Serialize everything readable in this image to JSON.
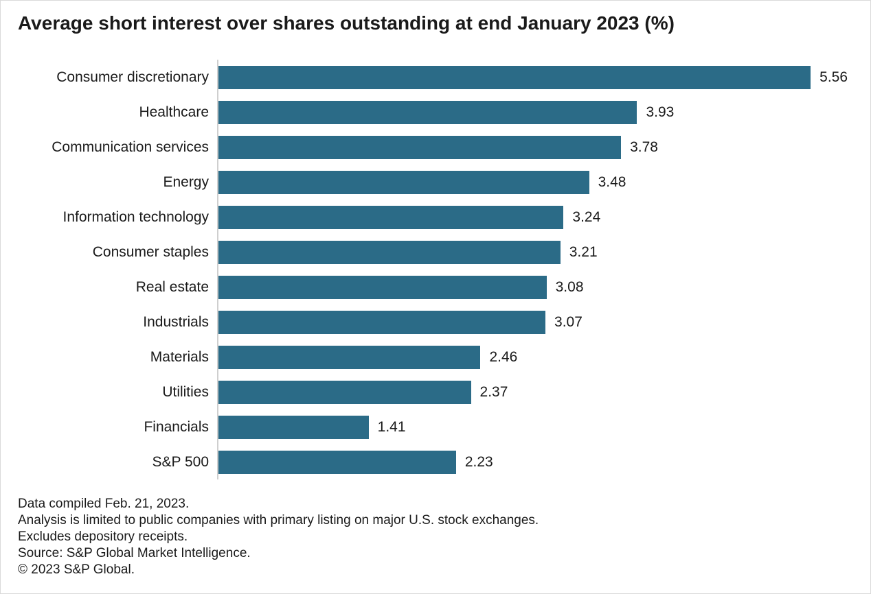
{
  "title": "Average short interest over shares outstanding at end January 2023 (%)",
  "chart_data": {
    "type": "bar",
    "orientation": "horizontal",
    "title": "Average short interest over shares outstanding at end January 2023 (%)",
    "xlabel": "",
    "ylabel": "",
    "categories": [
      "Consumer discretionary",
      "Healthcare",
      "Communication services",
      "Energy",
      "Information technology",
      "Consumer staples",
      "Real estate",
      "Industrials",
      "Materials",
      "Utilities",
      "Financials",
      "S&P 500"
    ],
    "values": [
      5.56,
      3.93,
      3.78,
      3.48,
      3.24,
      3.21,
      3.08,
      3.07,
      2.46,
      2.37,
      1.41,
      2.23
    ],
    "value_labels": [
      "5.56",
      "3.93",
      "3.78",
      "3.48",
      "3.24",
      "3.21",
      "3.08",
      "3.07",
      "2.46",
      "2.37",
      "1.41",
      "2.23"
    ],
    "xlim": [
      0,
      6.12
    ],
    "grid": false,
    "legend_position": "none",
    "bar_color": "#2b6b87",
    "axis_line_color": "#cfcfcf"
  },
  "footer": {
    "lines": [
      "Data compiled Feb. 21, 2023.",
      "Analysis is limited to public companies with primary listing on major U.S. stock exchanges.",
      "Excludes depository receipts.",
      "Source: S&P Global Market Intelligence.",
      "© 2023 S&P Global."
    ]
  }
}
